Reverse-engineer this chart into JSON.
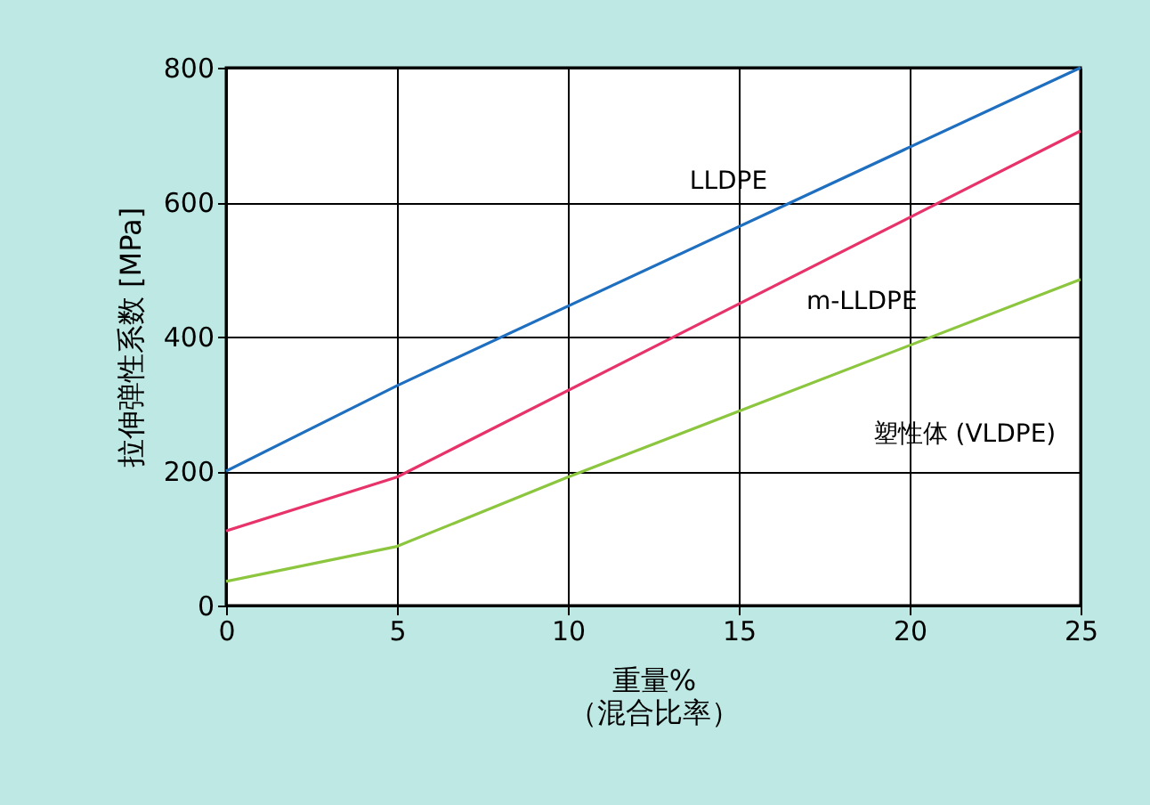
{
  "chart_data": {
    "type": "line",
    "xlabel": "重量%\n（混合比率）",
    "ylabel": "拉伸弹性系数 [MPa]",
    "xlim": [
      0,
      25
    ],
    "xticks": [
      0,
      5,
      10,
      15,
      20,
      25
    ],
    "ylim": [
      0,
      800
    ],
    "yticks": [
      0,
      200,
      400,
      600,
      800
    ],
    "grid": true,
    "legend": false,
    "marker": "none",
    "line_style": "solid",
    "series": [
      {
        "name": "LLDPE",
        "color": "#1f6fc0",
        "x": [
          0,
          5,
          25
        ],
        "values": [
          200,
          327,
          800
        ]
      },
      {
        "name": "m-LLDPE",
        "color": "#e8336a",
        "x": [
          0,
          5,
          25
        ],
        "values": [
          111,
          191,
          706
        ]
      },
      {
        "name": "塑性体 (VLDPE)",
        "color": "#8cc63f",
        "x": [
          0,
          5,
          10,
          25
        ],
        "values": [
          36,
          88,
          191,
          485
        ]
      }
    ]
  }
}
